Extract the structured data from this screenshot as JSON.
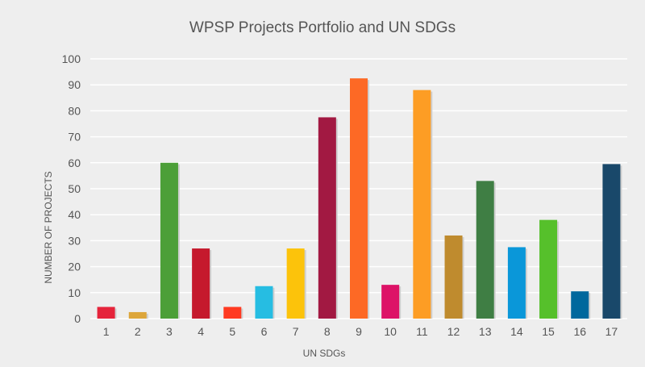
{
  "chart_data": {
    "type": "bar",
    "title": "WPSP Projects Portfolio and UN SDGs",
    "xlabel": "UN SDGs",
    "ylabel": "NUMBER OF PROJECTS",
    "ylim": [
      0,
      100
    ],
    "yticks": [
      "0",
      "10",
      "20",
      "30",
      "40",
      "50",
      "60",
      "70",
      "80",
      "90",
      "100"
    ],
    "grid": true,
    "categories": [
      "1",
      "2",
      "3",
      "4",
      "5",
      "6",
      "7",
      "8",
      "9",
      "10",
      "11",
      "12",
      "13",
      "14",
      "15",
      "16",
      "17"
    ],
    "values": [
      4.5,
      2.5,
      60,
      27,
      4.5,
      12.5,
      27,
      77.5,
      92.5,
      13,
      88,
      32,
      53,
      27.5,
      38,
      10.5,
      59.5
    ],
    "colors": [
      "#e5243b",
      "#dda63a",
      "#4c9f38",
      "#c5192d",
      "#ff3a21",
      "#26bde2",
      "#fcc30b",
      "#a21942",
      "#fd6925",
      "#dd1367",
      "#fd9d24",
      "#bf8b2e",
      "#3f7e44",
      "#0a97d9",
      "#56c02b",
      "#00689d",
      "#19486a"
    ]
  }
}
